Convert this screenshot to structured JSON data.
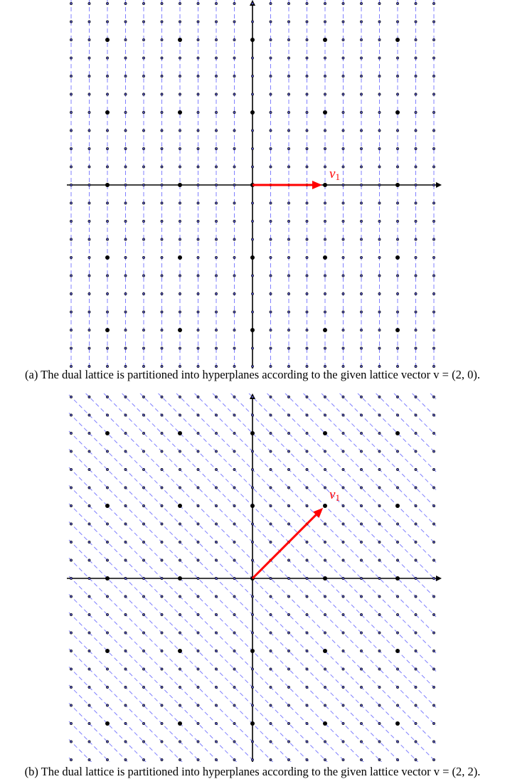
{
  "figures": [
    {
      "id": "a",
      "caption": "(a) The dual lattice is partitioned into hyperplanes according to the given lattice vector v = (2, 0).",
      "vector": [
        2,
        0
      ],
      "vector_label": "v",
      "vector_label_sub": "1",
      "hyperplane_direction": "vertical"
    },
    {
      "id": "b",
      "caption": "(b) The dual lattice is partitioned into hyperplanes according to the given lattice vector v = (2, 2).",
      "vector": [
        2,
        2
      ],
      "vector_label": "v",
      "vector_label_sub": "1",
      "hyperplane_direction": "diagonal"
    }
  ],
  "lattice": {
    "dual_spacing": 0.5,
    "primal_spacing": 2,
    "range": [
      -5,
      5
    ]
  },
  "colors": {
    "vector": "#ff0000",
    "hyperplanes": "#8080ff",
    "points": "#000000",
    "axes": "#000000"
  }
}
